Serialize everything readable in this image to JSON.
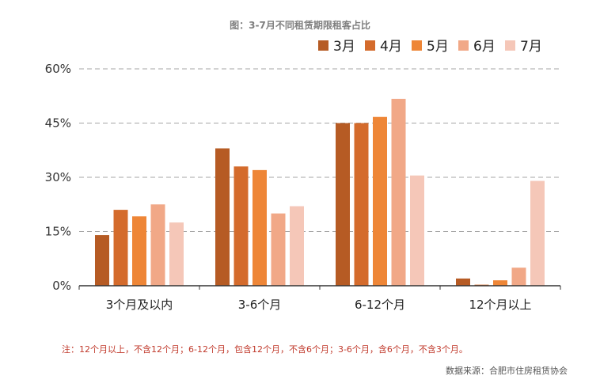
{
  "chart_data": {
    "type": "bar",
    "title": "图：3-7月不同租赁期限租客占比",
    "categories": [
      "3个月及以内",
      "3-6个月",
      "6-12个月",
      "12个月以上"
    ],
    "series": [
      {
        "name": "3月",
        "color": "#b65b24",
        "values": [
          14,
          38,
          45,
          2
        ]
      },
      {
        "name": "4月",
        "color": "#d46b2c",
        "values": [
          21,
          33,
          45,
          0.3
        ]
      },
      {
        "name": "5月",
        "color": "#ee8637",
        "values": [
          19.2,
          32,
          46.7,
          1.5
        ]
      },
      {
        "name": "6月",
        "color": "#f1a887",
        "values": [
          22.5,
          20,
          51.7,
          5
        ]
      },
      {
        "name": "7月",
        "color": "#f5c7b8",
        "values": [
          17.5,
          22,
          30.5,
          29
        ]
      }
    ],
    "ylim": [
      0,
      60
    ],
    "yticks": [
      0,
      15,
      30,
      45,
      60
    ],
    "ytick_labels": [
      "0%",
      "15%",
      "30%",
      "45%",
      "60%"
    ],
    "grid": "dashed horizontal",
    "legend_position": "top-right"
  },
  "footer": {
    "note": "注：12个月以上，不含12个月；6-12个月，包含12个月，不含6个月；3-6个月，含6个月，不含3个月。",
    "source": "数据来源：合肥市住房租赁协会"
  }
}
